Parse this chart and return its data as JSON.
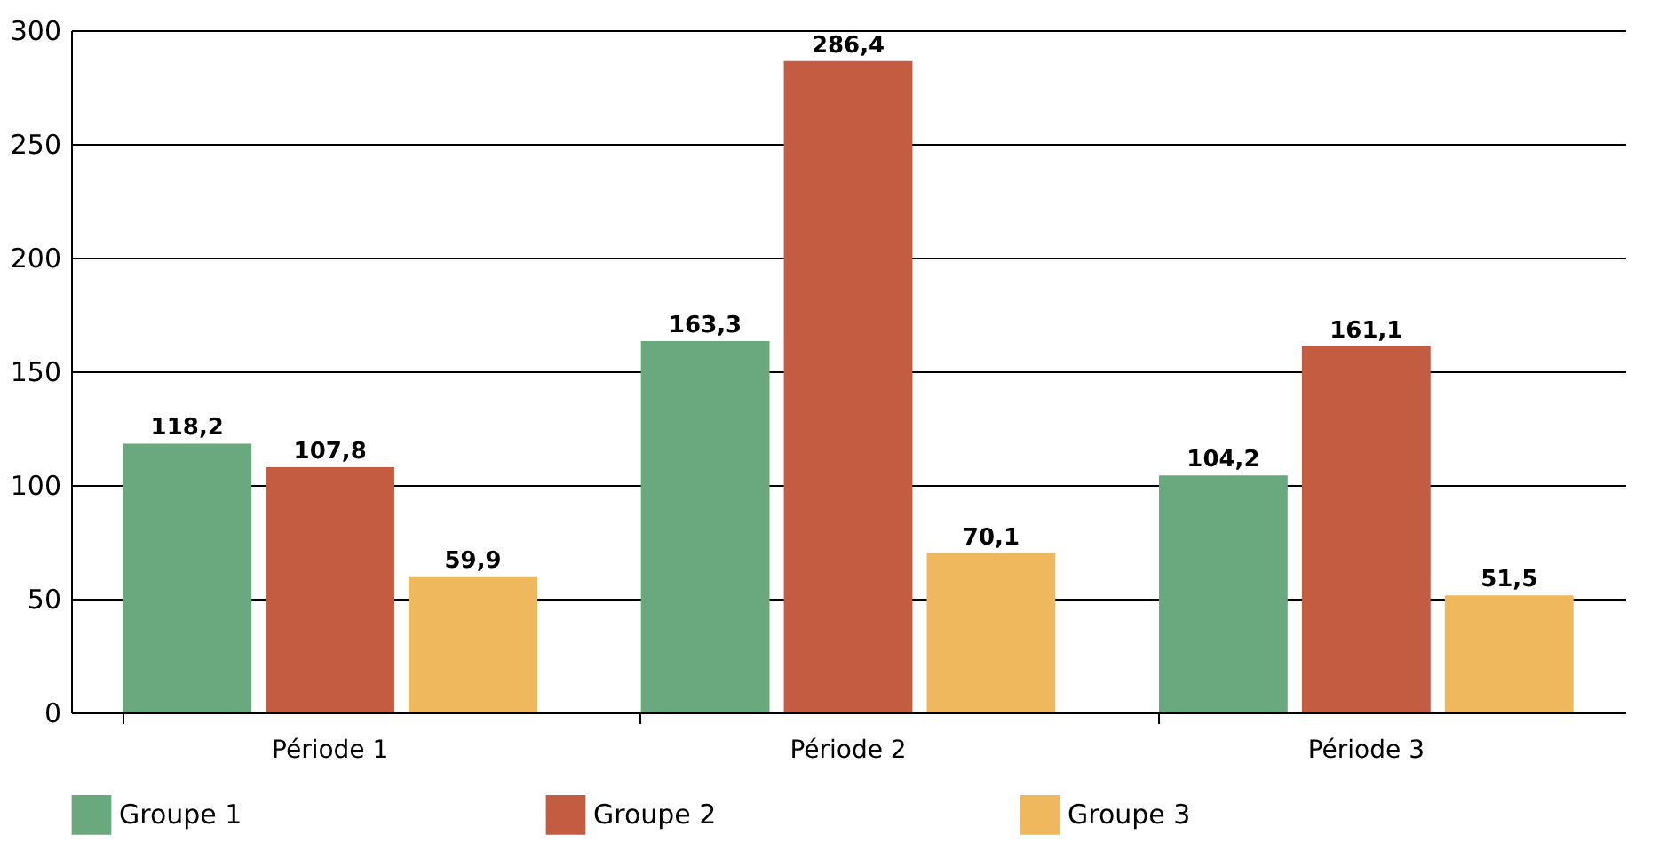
{
  "chart_data": {
    "type": "bar",
    "categories": [
      "Période 1",
      "Période 2",
      "Période 3"
    ],
    "series": [
      {
        "name": "Groupe 1",
        "color": "#6aa87e",
        "values": [
          118.2,
          163.3,
          104.2
        ],
        "value_labels": [
          "118,2",
          "163,3",
          "104,2"
        ]
      },
      {
        "name": "Groupe 2",
        "color": "#c45c41",
        "values": [
          107.8,
          286.4,
          161.1
        ],
        "value_labels": [
          "107,8",
          "286,4",
          "161,1"
        ]
      },
      {
        "name": "Groupe 3",
        "color": "#f0b85c",
        "values": [
          59.9,
          70.1,
          51.5
        ],
        "value_labels": [
          "59,9",
          "70,1",
          "51,5"
        ]
      }
    ],
    "ylim": [
      0,
      300
    ],
    "yticks": [
      0,
      50,
      100,
      150,
      200,
      250,
      300
    ],
    "grid": "y",
    "legend": "bottom"
  }
}
